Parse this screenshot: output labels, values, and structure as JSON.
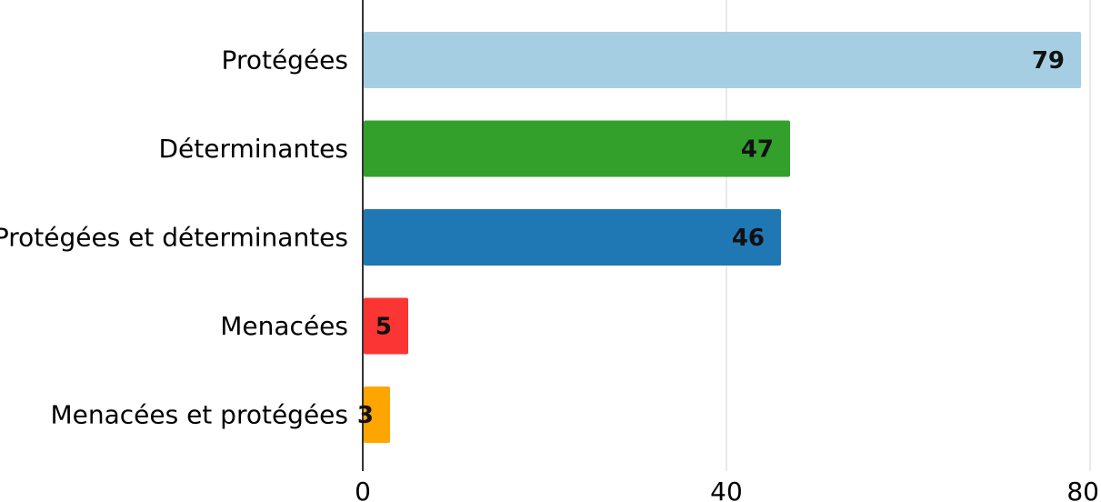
{
  "chart_data": {
    "type": "bar",
    "orientation": "horizontal",
    "title": "",
    "xlabel": "",
    "ylabel": "",
    "xlim": [
      0,
      80
    ],
    "xticks": [
      0,
      40,
      80
    ],
    "grid": "vertical",
    "legend": "none",
    "categories": [
      "Protégées",
      "Déterminantes",
      "Protégées et déterminantes",
      "Menacées",
      "Menacées et protégées"
    ],
    "values": [
      79,
      47,
      46,
      5,
      3
    ],
    "colors": [
      "#a6cee3",
      "#33a02c",
      "#1f78b4",
      "#fb3434",
      "#ffa500"
    ]
  }
}
